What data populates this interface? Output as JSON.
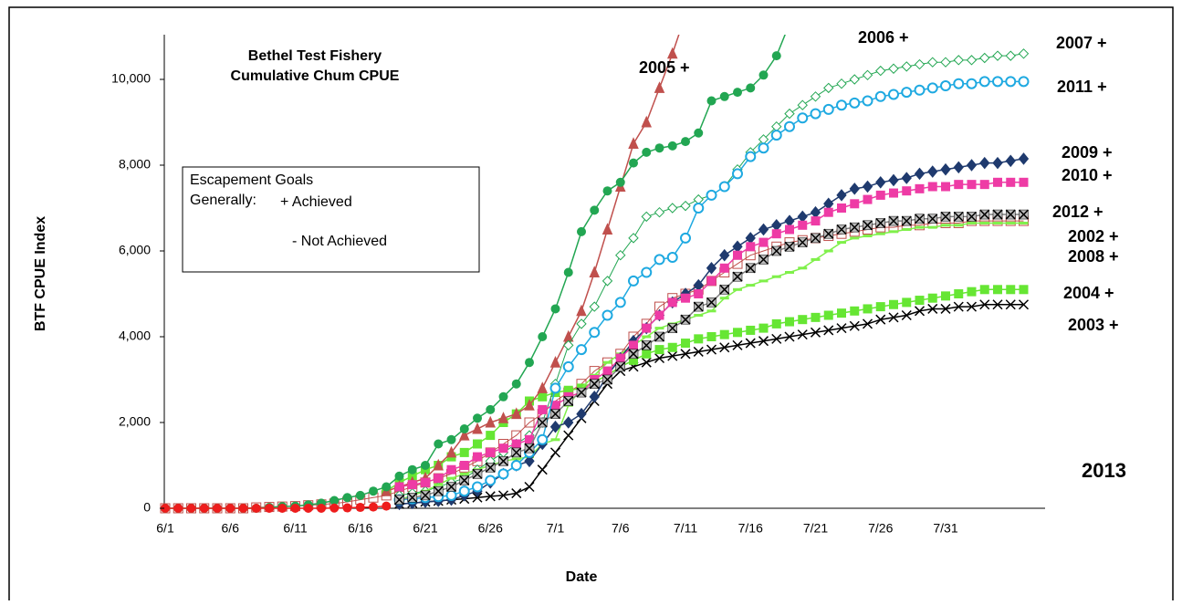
{
  "chart_data": {
    "type": "line",
    "title": [
      "Bethel Test Fishery",
      "Cumulative Chum  CPUE"
    ],
    "x_label": "Date",
    "y_label": "BTF CPUE Index",
    "note": {
      "lines": [
        "Escapement  Goals",
        "Generally:"
      ],
      "items": [
        "+ Achieved",
        "- Not Achieved"
      ]
    },
    "categories": [
      "6/1",
      null,
      null,
      null,
      null,
      "6/6",
      null,
      null,
      null,
      null,
      "6/11",
      null,
      null,
      null,
      null,
      "6/16",
      null,
      null,
      null,
      null,
      "6/21",
      null,
      null,
      null,
      null,
      "6/26",
      null,
      null,
      null,
      null,
      "7/1",
      null,
      null,
      null,
      null,
      "7/6",
      null,
      null,
      null,
      null,
      "7/11",
      null,
      null,
      null,
      null,
      "7/16",
      null,
      null,
      null,
      null,
      "7/21",
      null,
      null,
      null,
      null,
      "7/26",
      null,
      null,
      null,
      null,
      "7/31",
      null,
      null,
      null,
      null,
      null,
      null
    ],
    "ylim": [
      0,
      11000
    ],
    "yticks": [
      0,
      {
        "value": 2000,
        "label": "2,000"
      },
      {
        "value": 4000,
        "label": "4,000"
      },
      {
        "value": 6000,
        "label": "6,000"
      },
      {
        "value": 8000,
        "label": "8,000"
      },
      {
        "value": 10000,
        "label": "10,000"
      }
    ],
    "grid": false,
    "series": [
      {
        "name": "2002",
        "status": "+",
        "color": "#c0504d",
        "marker": "open-square",
        "values": [
          0,
          0,
          0,
          0,
          0,
          0,
          0,
          20,
          30,
          40,
          50,
          70,
          90,
          110,
          150,
          200,
          250,
          300,
          400,
          500,
          600,
          700,
          800,
          950,
          1100,
          1300,
          1500,
          1700,
          2000,
          2200,
          2500,
          2700,
          2900,
          3200,
          3400,
          3600,
          4000,
          4300,
          4700,
          4900,
          5000,
          5100,
          5300,
          5500,
          5700,
          5900,
          6000,
          6100,
          6200,
          6250,
          6300,
          6350,
          6400,
          6450,
          6500,
          6550,
          6550,
          6600,
          6600,
          6650,
          6650,
          6650,
          6700,
          6700,
          6700,
          6700,
          6700
        ]
      },
      {
        "name": "2003",
        "status": "+",
        "color": "#000000",
        "marker": "x",
        "values": [
          null,
          null,
          null,
          null,
          null,
          null,
          null,
          null,
          null,
          null,
          null,
          null,
          null,
          null,
          null,
          null,
          null,
          null,
          100,
          120,
          150,
          170,
          200,
          220,
          250,
          280,
          300,
          350,
          500,
          900,
          1300,
          1700,
          2100,
          2500,
          2900,
          3200,
          3300,
          3400,
          3500,
          3550,
          3600,
          3650,
          3700,
          3750,
          3800,
          3850,
          3900,
          3950,
          4000,
          4050,
          4100,
          4150,
          4200,
          4250,
          4300,
          4400,
          4450,
          4500,
          4600,
          4650,
          4650,
          4700,
          4700,
          4750,
          4750,
          4750,
          4750
        ]
      },
      {
        "name": "2004",
        "status": "+",
        "color": "#66e633",
        "marker": "square",
        "values": [
          null,
          null,
          null,
          null,
          null,
          null,
          null,
          null,
          null,
          null,
          null,
          null,
          null,
          null,
          null,
          null,
          null,
          400,
          600,
          750,
          900,
          1000,
          1200,
          1300,
          1500,
          1700,
          2000,
          2200,
          2500,
          2600,
          2700,
          2750,
          2800,
          2950,
          3100,
          3300,
          3450,
          3600,
          3700,
          3750,
          3850,
          3950,
          4000,
          4050,
          4100,
          4150,
          4200,
          4300,
          4350,
          4400,
          4450,
          4500,
          4550,
          4600,
          4650,
          4700,
          4750,
          4800,
          4850,
          4900,
          4950,
          5000,
          5050,
          5100,
          5100,
          5100,
          5100
        ]
      },
      {
        "name": "2005",
        "status": "+",
        "color": "#c0504d",
        "marker": "triangle",
        "values": [
          null,
          null,
          null,
          null,
          null,
          null,
          null,
          null,
          null,
          null,
          null,
          null,
          null,
          null,
          null,
          null,
          null,
          400,
          500,
          600,
          700,
          1000,
          1300,
          1700,
          1850,
          2000,
          2100,
          2200,
          2400,
          2800,
          3400,
          4000,
          4600,
          5500,
          6500,
          7500,
          8500,
          9000,
          9800,
          10600,
          11500,
          null,
          null,
          null,
          null,
          null,
          null,
          null,
          null,
          null,
          null,
          null,
          null,
          null,
          null,
          null,
          null,
          null,
          null,
          null,
          null,
          null,
          null,
          null,
          null,
          null,
          null
        ]
      },
      {
        "name": "2006",
        "status": "+",
        "color": "#22a652",
        "marker": "circle",
        "values": [
          0,
          0,
          0,
          0,
          0,
          0,
          0,
          0,
          20,
          40,
          50,
          80,
          120,
          180,
          250,
          300,
          400,
          500,
          750,
          900,
          1000,
          1500,
          1600,
          1850,
          2100,
          2300,
          2600,
          2900,
          3400,
          4000,
          4650,
          5500,
          6450,
          6950,
          7400,
          7600,
          8050,
          8300,
          8400,
          8450,
          8550,
          8750,
          9500,
          9600,
          9700,
          9800,
          10100,
          10550,
          11300,
          null,
          null,
          null,
          null,
          null,
          null,
          null,
          null,
          null,
          null,
          null,
          null,
          null,
          null,
          null,
          null,
          null,
          null
        ]
      },
      {
        "name": "2007",
        "status": "+",
        "color": "#22a652",
        "marker": "open-diamond",
        "values": [
          null,
          null,
          null,
          null,
          null,
          null,
          null,
          null,
          null,
          null,
          null,
          null,
          null,
          null,
          null,
          null,
          null,
          null,
          300,
          350,
          400,
          500,
          600,
          700,
          900,
          1100,
          1300,
          1500,
          1700,
          2000,
          2900,
          3800,
          4300,
          4700,
          5300,
          5900,
          6300,
          6800,
          6900,
          7000,
          7050,
          7200,
          7300,
          7500,
          7900,
          8300,
          8600,
          8900,
          9200,
          9400,
          9600,
          9800,
          9900,
          10000,
          10100,
          10200,
          10250,
          10300,
          10350,
          10400,
          10400,
          10450,
          10450,
          10500,
          10550,
          10550,
          10600
        ]
      },
      {
        "name": "2008",
        "status": "+",
        "color": "#7ff04a",
        "marker": "dash",
        "values": [
          null,
          null,
          null,
          null,
          null,
          null,
          null,
          null,
          null,
          null,
          null,
          null,
          null,
          null,
          null,
          null,
          null,
          null,
          200,
          300,
          400,
          550,
          700,
          800,
          900,
          1000,
          1100,
          1150,
          1200,
          1500,
          1600,
          2400,
          2800,
          3100,
          3400,
          3600,
          3800,
          4000,
          4200,
          4300,
          4400,
          4500,
          4600,
          4900,
          5100,
          5200,
          5300,
          5400,
          5500,
          5600,
          5800,
          6000,
          6200,
          6300,
          6350,
          6400,
          6450,
          6500,
          6550,
          6550,
          6600,
          6600,
          6650,
          6650,
          6650,
          6650,
          6650
        ]
      },
      {
        "name": "2009",
        "status": "+",
        "color": "#1f3a6e",
        "marker": "diamond",
        "values": [
          null,
          null,
          null,
          null,
          null,
          null,
          null,
          null,
          null,
          null,
          null,
          null,
          null,
          null,
          null,
          null,
          null,
          null,
          100,
          120,
          150,
          170,
          200,
          300,
          400,
          600,
          800,
          1000,
          1100,
          1500,
          1900,
          2000,
          2200,
          2600,
          3100,
          3500,
          3900,
          4200,
          4500,
          4800,
          5000,
          5200,
          5600,
          5900,
          6100,
          6300,
          6500,
          6600,
          6700,
          6800,
          6900,
          7100,
          7300,
          7450,
          7500,
          7600,
          7650,
          7700,
          7800,
          7850,
          7900,
          7950,
          8000,
          8050,
          8050,
          8100,
          8150
        ]
      },
      {
        "name": "2010",
        "status": "+",
        "color": "#ee3ba5",
        "marker": "square",
        "values": [
          null,
          null,
          null,
          null,
          null,
          null,
          null,
          null,
          null,
          null,
          null,
          null,
          null,
          null,
          null,
          null,
          null,
          null,
          500,
          550,
          600,
          700,
          900,
          1000,
          1200,
          1300,
          1400,
          1500,
          1600,
          2300,
          2400,
          2600,
          2700,
          3000,
          3200,
          3500,
          3800,
          4200,
          4500,
          4800,
          4900,
          5000,
          5300,
          5600,
          5900,
          6100,
          6200,
          6400,
          6500,
          6600,
          6700,
          6900,
          7000,
          7100,
          7200,
          7300,
          7350,
          7400,
          7450,
          7500,
          7500,
          7550,
          7550,
          7550,
          7600,
          7600,
          7600
        ]
      },
      {
        "name": "2011",
        "status": "+",
        "color": "#1ea9e1",
        "marker": "open-circle",
        "values": [
          null,
          null,
          null,
          null,
          null,
          null,
          null,
          null,
          null,
          null,
          null,
          null,
          null,
          null,
          null,
          null,
          null,
          null,
          200,
          220,
          250,
          270,
          300,
          400,
          500,
          650,
          800,
          1000,
          1300,
          1600,
          2800,
          3300,
          3700,
          4100,
          4500,
          4800,
          5300,
          5500,
          5800,
          5850,
          6300,
          7000,
          7300,
          7500,
          7800,
          8200,
          8400,
          8700,
          8900,
          9100,
          9200,
          9300,
          9400,
          9450,
          9500,
          9600,
          9650,
          9700,
          9750,
          9800,
          9850,
          9900,
          9900,
          9950,
          9950,
          9950,
          9950
        ]
      },
      {
        "name": "2012",
        "status": "+",
        "color": "#808080",
        "marker": "square-x",
        "values": [
          null,
          null,
          null,
          null,
          null,
          null,
          null,
          null,
          null,
          null,
          null,
          null,
          null,
          null,
          null,
          null,
          null,
          null,
          200,
          250,
          300,
          400,
          500,
          650,
          800,
          950,
          1100,
          1300,
          1400,
          2000,
          2200,
          2500,
          2700,
          2900,
          3000,
          3300,
          3600,
          3800,
          4000,
          4200,
          4400,
          4700,
          4800,
          5100,
          5400,
          5600,
          5800,
          6000,
          6100,
          6200,
          6300,
          6400,
          6500,
          6550,
          6600,
          6650,
          6700,
          6700,
          6750,
          6750,
          6800,
          6800,
          6800,
          6850,
          6850,
          6850,
          6850
        ]
      },
      {
        "name": "2013",
        "color": "#ee1c1c",
        "marker": "circle",
        "values": [
          0,
          0,
          0,
          0,
          0,
          0,
          0,
          0,
          0,
          0,
          0,
          0,
          0,
          5,
          10,
          20,
          30,
          50,
          null,
          null,
          null,
          null,
          null,
          null,
          null,
          null,
          null,
          null,
          null,
          null,
          null,
          null,
          null,
          null,
          null,
          null,
          null,
          null,
          null,
          null,
          null,
          null,
          null,
          null,
          null,
          null,
          null,
          null,
          null,
          null,
          null,
          null,
          null,
          null,
          null,
          null,
          null,
          null,
          null,
          null,
          null,
          null,
          null,
          null,
          null,
          null,
          null
        ]
      }
    ]
  }
}
